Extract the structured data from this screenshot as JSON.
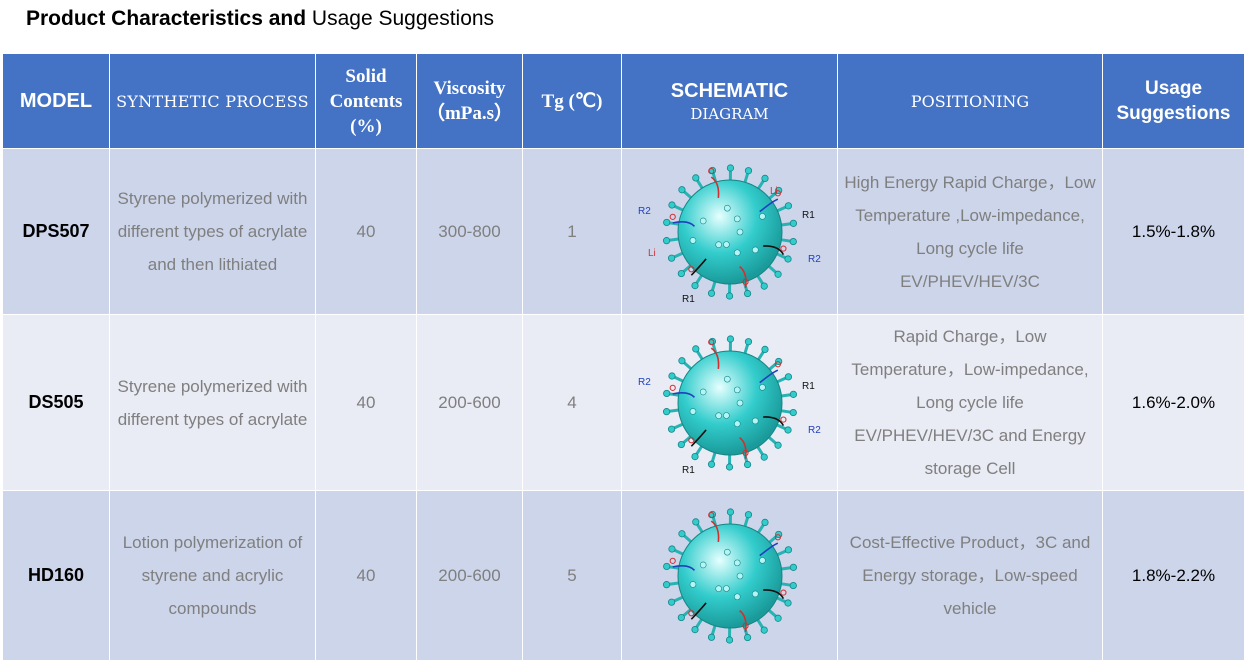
{
  "title": {
    "bold": "Product Characteristics and",
    "rest": " Usage Suggestions"
  },
  "headers": {
    "model": "MODEL",
    "process": "SYNTHETIC PROCESS",
    "solid": "Solid Contents (%)",
    "viscosity": "Viscosity （mPa.s）",
    "tg": "Tg (℃)",
    "schematic_top": "SCHEMATIC",
    "schematic_bottom": "DIAGRAM",
    "positioning": "POSITIONING",
    "usage": "Usage Suggestions"
  },
  "rows": [
    {
      "model": "DPS507",
      "process": "Styrene polymerized with different types of acrylate and then lithiated",
      "solid": "40",
      "viscosity": "300-800",
      "tg": "1",
      "positioning": "High Energy Rapid Charge，Low Temperature ,Low-impedance, Long cycle life EV/PHEV/HEV/3C",
      "usage": "1.5%-1.8%",
      "diagram_labels": [
        "R2",
        "R1",
        "R2",
        "R1",
        "Li",
        "Li"
      ]
    },
    {
      "model": "DS505",
      "process": "Styrene polymerized with different types of acrylate",
      "solid": "40",
      "viscosity": "200-600",
      "tg": "4",
      "positioning": "Rapid Charge，Low Temperature，Low-impedance, Long cycle life EV/PHEV/HEV/3C and Energy storage Cell",
      "usage": "1.6%-2.0%",
      "diagram_labels": [
        "R2",
        "R1",
        "R2",
        "R1"
      ]
    },
    {
      "model": "HD160",
      "process": "Lotion polymerization of styrene and acrylic compounds",
      "solid": "40",
      "viscosity": "200-600",
      "tg": "5",
      "positioning": "Cost-Effective Product，3C and Energy storage，Low-speed vehicle",
      "usage": "1.8%-2.2%",
      "diagram_labels": []
    }
  ],
  "colors": {
    "header": "#4472C4",
    "row_dark": "#CDD5EA",
    "row_light": "#E9EBF5",
    "sphere": "#33CCCC"
  }
}
